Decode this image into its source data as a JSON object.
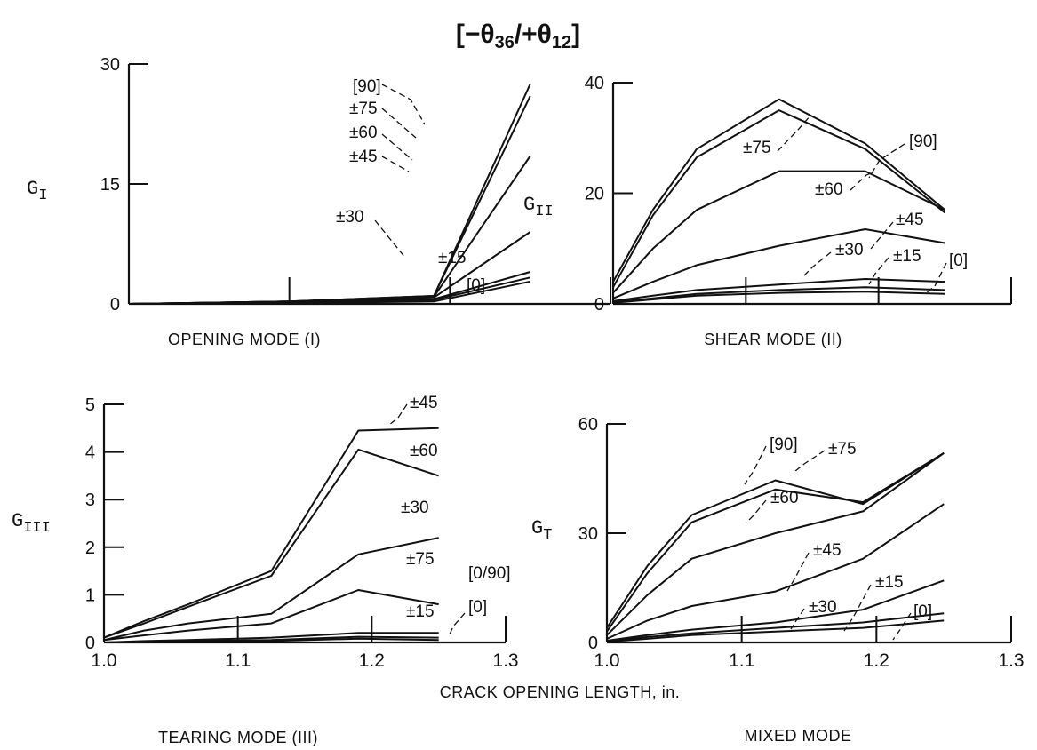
{
  "figure": {
    "title": "[−θ36/+θ12]",
    "shared_xlabel": "CRACK OPENING LENGTH, in."
  },
  "chart_data": [
    {
      "type": "line",
      "ylabel": "G_I",
      "caption": "OPENING MODE (I)",
      "xlim": [
        1.0,
        1.3
      ],
      "ylim": [
        0,
        30
      ],
      "yticks": [
        "0",
        "15",
        "30"
      ],
      "xticks": [],
      "series": [
        {
          "name": "[90]",
          "x": [
            1.0,
            1.1,
            1.19,
            1.25
          ],
          "y": [
            0,
            0.3,
            1.0,
            27.5
          ]
        },
        {
          "name": "±75",
          "x": [
            1.0,
            1.1,
            1.19,
            1.25
          ],
          "y": [
            0,
            0.3,
            1.0,
            26.0
          ]
        },
        {
          "name": "±60",
          "x": [
            1.0,
            1.1,
            1.19,
            1.25
          ],
          "y": [
            0,
            0.3,
            0.9,
            18.5
          ]
        },
        {
          "name": "±45",
          "x": [
            1.0,
            1.1,
            1.19,
            1.25
          ],
          "y": [
            0,
            0.3,
            0.8,
            9.0
          ]
        },
        {
          "name": "±30",
          "x": [
            1.0,
            1.1,
            1.19,
            1.25
          ],
          "y": [
            0,
            0.2,
            0.6,
            4.0
          ]
        },
        {
          "name": "±15",
          "x": [
            1.0,
            1.1,
            1.19,
            1.25
          ],
          "y": [
            0,
            0.2,
            0.5,
            3.3
          ]
        },
        {
          "name": "[0]",
          "x": [
            1.0,
            1.1,
            1.19,
            1.25
          ],
          "y": [
            0,
            0.1,
            0.3,
            2.8
          ]
        }
      ]
    },
    {
      "type": "line",
      "ylabel": "G_II",
      "caption": "SHEAR MODE (II)",
      "xlim": [
        1.0,
        1.3
      ],
      "ylim": [
        0,
        40
      ],
      "yticks": [
        "0",
        "20",
        "40"
      ],
      "xticks": [],
      "series": [
        {
          "name": "[90]",
          "x": [
            1.0,
            1.03,
            1.063,
            1.125,
            1.19,
            1.25
          ],
          "y": [
            4,
            17,
            28,
            37,
            29,
            17
          ]
        },
        {
          "name": "±75",
          "x": [
            1.0,
            1.03,
            1.063,
            1.125,
            1.19,
            1.25
          ],
          "y": [
            3,
            16,
            26.5,
            35,
            28,
            16.5
          ]
        },
        {
          "name": "±60",
          "x": [
            1.0,
            1.03,
            1.063,
            1.125,
            1.19,
            1.25
          ],
          "y": [
            2,
            10,
            17,
            24,
            24,
            17
          ]
        },
        {
          "name": "±45",
          "x": [
            1.0,
            1.03,
            1.063,
            1.125,
            1.19,
            1.25
          ],
          "y": [
            1,
            4,
            7,
            10.5,
            13.5,
            11
          ]
        },
        {
          "name": "±30",
          "x": [
            1.0,
            1.03,
            1.063,
            1.125,
            1.19,
            1.25
          ],
          "y": [
            0.5,
            1.5,
            2.5,
            3.5,
            4.5,
            4
          ]
        },
        {
          "name": "±15",
          "x": [
            1.0,
            1.03,
            1.063,
            1.125,
            1.19,
            1.25
          ],
          "y": [
            0.3,
            1,
            1.8,
            2.5,
            3,
            2.5
          ]
        },
        {
          "name": "[0]",
          "x": [
            1.0,
            1.03,
            1.063,
            1.125,
            1.19,
            1.25
          ],
          "y": [
            0.2,
            0.8,
            1.5,
            2,
            2.2,
            1.8
          ]
        }
      ]
    },
    {
      "type": "line",
      "ylabel": "G_III",
      "caption": "TEARING MODE (III)",
      "xlim": [
        1.0,
        1.3
      ],
      "ylim": [
        0,
        5
      ],
      "yticks": [
        "0",
        "1",
        "2",
        "3",
        "4",
        "5"
      ],
      "xticks": [
        "1.0",
        "1.1",
        "1.2",
        "1.3"
      ],
      "series": [
        {
          "name": "±45",
          "x": [
            1.0,
            1.03,
            1.063,
            1.125,
            1.19,
            1.25
          ],
          "y": [
            0.1,
            0.45,
            0.8,
            1.5,
            4.45,
            4.5
          ]
        },
        {
          "name": "±60",
          "x": [
            1.0,
            1.03,
            1.063,
            1.125,
            1.19,
            1.25
          ],
          "y": [
            0.1,
            0.4,
            0.75,
            1.4,
            4.05,
            3.5
          ]
        },
        {
          "name": "±30",
          "x": [
            1.0,
            1.03,
            1.063,
            1.125,
            1.19,
            1.25
          ],
          "y": [
            0.05,
            0.25,
            0.4,
            0.6,
            1.85,
            2.2
          ]
        },
        {
          "name": "±75",
          "x": [
            1.0,
            1.03,
            1.063,
            1.125,
            1.19,
            1.25
          ],
          "y": [
            0.05,
            0.15,
            0.25,
            0.4,
            1.1,
            0.8
          ]
        },
        {
          "name": "±15",
          "x": [
            1.0,
            1.03,
            1.063,
            1.125,
            1.19,
            1.25
          ],
          "y": [
            0,
            0.03,
            0.05,
            0.1,
            0.2,
            0.2
          ]
        },
        {
          "name": "[0/90]",
          "x": [
            1.0,
            1.03,
            1.063,
            1.125,
            1.19,
            1.25
          ],
          "y": [
            0,
            0.02,
            0.03,
            0.05,
            0.12,
            0.1
          ]
        },
        {
          "name": "[0]",
          "x": [
            1.0,
            1.03,
            1.063,
            1.125,
            1.19,
            1.25
          ],
          "y": [
            0,
            0.01,
            0.02,
            0.03,
            0.08,
            0.05
          ]
        }
      ]
    },
    {
      "type": "line",
      "ylabel": "G_T",
      "caption": "MIXED MODE",
      "xlim": [
        1.0,
        1.3
      ],
      "ylim": [
        0,
        60
      ],
      "yticks": [
        "0",
        "30",
        "60"
      ],
      "xticks": [
        "1.0",
        "1.1",
        "1.2",
        "1.3"
      ],
      "series": [
        {
          "name": "[90]",
          "x": [
            1.0,
            1.03,
            1.063,
            1.125,
            1.19,
            1.25
          ],
          "y": [
            4,
            21,
            35,
            44.5,
            38,
            52
          ]
        },
        {
          "name": "±75",
          "x": [
            1.0,
            1.03,
            1.063,
            1.125,
            1.19,
            1.25
          ],
          "y": [
            3,
            19,
            33,
            42,
            38.5,
            52
          ]
        },
        {
          "name": "±60",
          "x": [
            1.0,
            1.03,
            1.063,
            1.125,
            1.19,
            1.25
          ],
          "y": [
            2,
            13,
            23,
            30,
            36,
            52
          ]
        },
        {
          "name": "±45",
          "x": [
            1.0,
            1.03,
            1.063,
            1.125,
            1.19,
            1.25
          ],
          "y": [
            1,
            6,
            10,
            14,
            23,
            38
          ]
        },
        {
          "name": "±15",
          "x": [
            1.0,
            1.03,
            1.063,
            1.125,
            1.19,
            1.25
          ],
          "y": [
            0.5,
            2,
            3.5,
            5.5,
            9,
            17
          ]
        },
        {
          "name": "±30",
          "x": [
            1.0,
            1.03,
            1.063,
            1.125,
            1.19,
            1.25
          ],
          "y": [
            0.3,
            1.5,
            2.5,
            4,
            5.5,
            8
          ]
        },
        {
          "name": "[0]",
          "x": [
            1.0,
            1.03,
            1.063,
            1.125,
            1.19,
            1.25
          ],
          "y": [
            0.2,
            1,
            2,
            3,
            4,
            6
          ]
        }
      ]
    }
  ]
}
